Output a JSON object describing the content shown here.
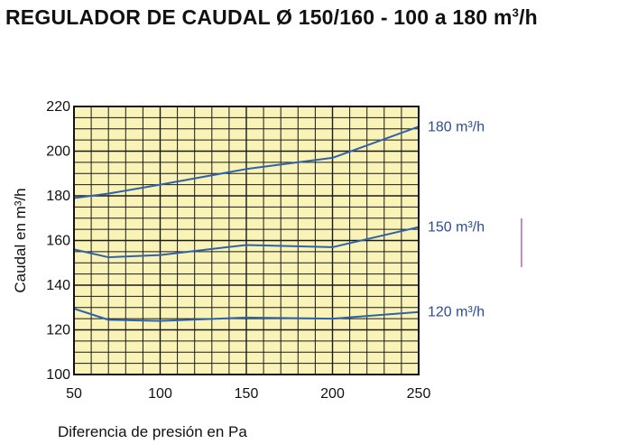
{
  "title": "REGULADOR DE CAUDAL Ø 150/160 - 100 a 180 m³/h",
  "chart_data": {
    "type": "line",
    "title": "REGULADOR DE CAUDAL Ø 150/160 - 100 a 180 m³/h",
    "xlabel": "Diferencia de presión en Pa",
    "ylabel": "Caudal en m³/h",
    "xlim": [
      50,
      250
    ],
    "ylim": [
      100,
      220
    ],
    "xticks": [
      50,
      100,
      150,
      200,
      250
    ],
    "yticks": [
      100,
      120,
      140,
      160,
      180,
      200,
      220
    ],
    "grid": true,
    "background": "#faf3b8",
    "line_color": "#2f63a8",
    "label_color": "#2b4e8e",
    "series": [
      {
        "name": "180 m³/h",
        "x": [
          50,
          70,
          100,
          150,
          200,
          250
        ],
        "y": [
          179,
          181,
          185,
          192,
          197,
          211
        ]
      },
      {
        "name": "150 m³/h",
        "x": [
          50,
          70,
          100,
          150,
          200,
          250
        ],
        "y": [
          156,
          152.5,
          153.5,
          158,
          157,
          166
        ]
      },
      {
        "name": "120 m³/h",
        "x": [
          50,
          70,
          100,
          150,
          200,
          250
        ],
        "y": [
          129.5,
          124.5,
          124,
          125.5,
          125,
          128
        ]
      }
    ]
  }
}
